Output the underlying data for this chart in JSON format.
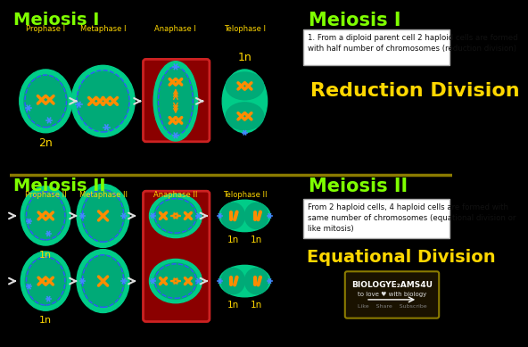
{
  "bg_color": "#000000",
  "divider_color": "#8B7B00",
  "meiosis1_title": "Meiosis I",
  "meiosis2_title": "Meiosis II",
  "title_color": "#7FFF00",
  "phases1": [
    "Prophase I",
    "Metaphase I",
    "Anaphase I",
    "Telophase I"
  ],
  "phases2": [
    "Prophase II",
    "Metaphase II",
    "Anaphase II",
    "Telophase II"
  ],
  "phase_label_color": "#FFD700",
  "cell_outer_color": "#00CC88",
  "cell_inner_color": "#009966",
  "cell_inner2_color": "#00AA77",
  "highlight_box_color": "#8B0000",
  "highlight_border_color": "#CC2222",
  "arrow_color": "#dddddd",
  "chromosome_color": "#FF8C00",
  "spindle_color": "#3355FF",
  "star_color": "#4488FF",
  "ploidy_2n": "2n",
  "ploidy_1n": "1n",
  "ploidy_color": "#FFD700",
  "reduction_text": "Reduction Division",
  "equational_text": "Equational Division",
  "division_text_color": "#FFD700",
  "meiosis1_info": "1. From a diploid parent cell 2 haploid cells are formed\nwith half number of chromosomes (reduction division)",
  "meiosis2_info": "From 2 haploid cells, 4 haploid cells are formed with\nsame number of chromosomes (equational division or\nlike mitosis)",
  "info_bg": "#ffffff",
  "info_text_color": "#111111",
  "watermark_bg": "#1a1200",
  "watermark_border": "#8B7B00"
}
